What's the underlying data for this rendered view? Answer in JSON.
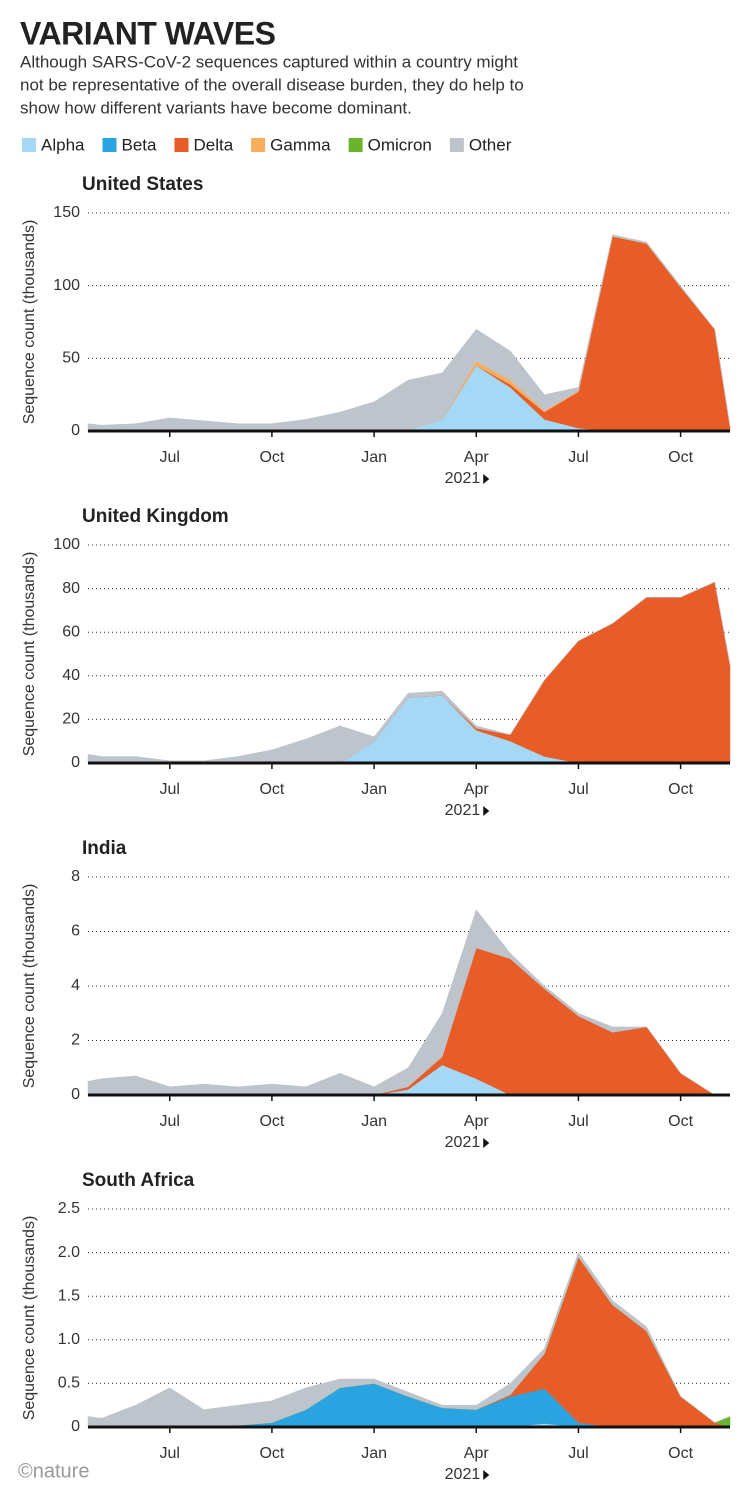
{
  "header": {
    "title": "VARIANT WAVES",
    "subtitle": [
      "Although SARS-CoV-2 sequences captured within a country might",
      "not be representative of the overall disease burden, they do help to",
      "show how different variants have become dominant."
    ],
    "credit": "©nature"
  },
  "legend": [
    {
      "name": "Alpha",
      "color": "#a4d8f5"
    },
    {
      "name": "Beta",
      "color": "#2aa4e0"
    },
    {
      "name": "Delta",
      "color": "#e85c27"
    },
    {
      "name": "Gamma",
      "color": "#f7ae5e"
    },
    {
      "name": "Omicron",
      "color": "#6ab42d"
    },
    {
      "name": "Other",
      "color": "#bec4cc"
    }
  ],
  "chart_data": [
    {
      "type": "area",
      "title": "United States",
      "y_label": "Sequence count (thousands)",
      "x": [
        3.6,
        4,
        5,
        6,
        7,
        8,
        9,
        10,
        11,
        12,
        13,
        14,
        15,
        16,
        17,
        18,
        19,
        20,
        21,
        22,
        22.45
      ],
      "xlim": [
        3.6,
        22.45
      ],
      "xticks": [
        {
          "value": 6,
          "label": "Jul"
        },
        {
          "value": 9,
          "label": "Oct"
        },
        {
          "value": 12,
          "label": "Jan"
        },
        {
          "value": 15,
          "label": "Apr"
        },
        {
          "value": 18,
          "label": "Jul"
        },
        {
          "value": 21,
          "label": "Oct"
        }
      ],
      "year_label": {
        "value": 15,
        "label": "2021"
      },
      "ylim": [
        0,
        150
      ],
      "yticks": [
        0,
        50,
        100,
        150
      ],
      "grid": true,
      "series": [
        {
          "name": "Alpha",
          "values": [
            0,
            0,
            0,
            0,
            0,
            0,
            0,
            0,
            0,
            0,
            1,
            8,
            45,
            30,
            8,
            2,
            0,
            0,
            0,
            0,
            0
          ]
        },
        {
          "name": "Delta",
          "values": [
            0,
            0,
            0,
            0,
            0,
            0,
            0,
            0,
            0,
            0,
            0,
            0,
            0,
            2,
            5,
            25,
            134,
            129,
            99,
            70,
            3
          ]
        },
        {
          "name": "Gamma",
          "values": [
            0,
            0,
            0,
            0,
            0,
            0,
            0,
            0,
            0,
            0,
            0,
            0,
            3,
            3,
            1,
            0.5,
            0,
            0,
            0,
            0,
            0
          ]
        },
        {
          "name": "Other",
          "values": [
            5,
            4,
            5,
            9,
            7,
            5,
            5,
            8,
            13,
            20,
            34,
            32,
            22,
            20,
            11,
            2.5,
            1,
            1,
            1,
            0,
            0
          ]
        }
      ]
    },
    {
      "type": "area",
      "title": "United Kingdom",
      "y_label": "Sequence count (thousands)",
      "x": [
        3.6,
        4,
        5,
        6,
        7,
        8,
        9,
        10,
        11,
        12,
        13,
        14,
        15,
        16,
        17,
        18,
        19,
        20,
        21,
        22,
        22.45
      ],
      "xlim": [
        3.6,
        22.45
      ],
      "xticks": [
        {
          "value": 6,
          "label": "Jul"
        },
        {
          "value": 9,
          "label": "Oct"
        },
        {
          "value": 12,
          "label": "Jan"
        },
        {
          "value": 15,
          "label": "Apr"
        },
        {
          "value": 18,
          "label": "Jul"
        },
        {
          "value": 21,
          "label": "Oct"
        }
      ],
      "year_label": {
        "value": 15,
        "label": "2021"
      },
      "ylim": [
        0,
        100
      ],
      "yticks": [
        0,
        20,
        40,
        60,
        80,
        100
      ],
      "grid": true,
      "series": [
        {
          "name": "Alpha",
          "values": [
            0,
            0,
            0,
            0,
            0,
            0,
            0,
            0,
            0,
            10,
            30,
            31,
            15,
            10,
            3,
            0,
            0,
            0,
            0,
            0,
            0
          ]
        },
        {
          "name": "Delta",
          "values": [
            0,
            0,
            0,
            0,
            0,
            0,
            0,
            0,
            0,
            0,
            0,
            0,
            1,
            3,
            35,
            56,
            64,
            76,
            76,
            83,
            45
          ]
        },
        {
          "name": "Other",
          "values": [
            4,
            3,
            3,
            1,
            1,
            3,
            6,
            11,
            17,
            2,
            2,
            2,
            1,
            0,
            0,
            0,
            0,
            0,
            0,
            0,
            0
          ]
        }
      ]
    },
    {
      "type": "area",
      "title": "India",
      "y_label": "Sequence count (thousands)",
      "x": [
        3.6,
        4,
        5,
        6,
        7,
        8,
        9,
        10,
        11,
        12,
        13,
        14,
        15,
        16,
        17,
        18,
        19,
        20,
        21,
        22,
        22.45
      ],
      "xlim": [
        3.6,
        22.45
      ],
      "xticks": [
        {
          "value": 6,
          "label": "Jul"
        },
        {
          "value": 9,
          "label": "Oct"
        },
        {
          "value": 12,
          "label": "Jan"
        },
        {
          "value": 15,
          "label": "Apr"
        },
        {
          "value": 18,
          "label": "Jul"
        },
        {
          "value": 21,
          "label": "Oct"
        }
      ],
      "year_label": {
        "value": 15,
        "label": "2021"
      },
      "ylim": [
        0,
        8
      ],
      "yticks": [
        0,
        2,
        4,
        6,
        8
      ],
      "grid": true,
      "series": [
        {
          "name": "Alpha",
          "values": [
            0,
            0,
            0,
            0,
            0,
            0,
            0,
            0,
            0,
            0,
            0.2,
            1.1,
            0.6,
            0,
            0,
            0,
            0,
            0,
            0,
            0,
            0
          ]
        },
        {
          "name": "Delta",
          "values": [
            0,
            0,
            0,
            0,
            0,
            0,
            0,
            0,
            0,
            0,
            0.1,
            0.3,
            4.8,
            5.0,
            3.9,
            2.9,
            2.3,
            2.5,
            0.8,
            0,
            0
          ]
        },
        {
          "name": "Other",
          "values": [
            0.5,
            0.6,
            0.7,
            0.3,
            0.4,
            0.3,
            0.4,
            0.3,
            0.8,
            0.3,
            0.7,
            1.6,
            1.4,
            0.2,
            0.1,
            0.1,
            0.2,
            0,
            0,
            0,
            0
          ]
        }
      ]
    },
    {
      "type": "area",
      "title": "South Africa",
      "y_label": "Sequence count (thousands)",
      "x": [
        3.6,
        4,
        5,
        6,
        7,
        8,
        9,
        10,
        11,
        12,
        13,
        14,
        15,
        16,
        17,
        18,
        19,
        20,
        21,
        22,
        22.45
      ],
      "xlim": [
        3.6,
        22.45
      ],
      "xticks": [
        {
          "value": 6,
          "label": "Jul"
        },
        {
          "value": 9,
          "label": "Oct"
        },
        {
          "value": 12,
          "label": "Jan"
        },
        {
          "value": 15,
          "label": "Apr"
        },
        {
          "value": 18,
          "label": "Jul"
        },
        {
          "value": 21,
          "label": "Oct"
        }
      ],
      "year_label": {
        "value": 15,
        "label": "2021"
      },
      "ylim": [
        0,
        2.5
      ],
      "yticks": [
        0,
        0.5,
        {
          "value": 1,
          "label": "1.0"
        },
        1.5,
        {
          "value": 2,
          "label": "2.0"
        },
        2.5
      ],
      "grid": true,
      "series": [
        {
          "name": "Alpha",
          "values": [
            0,
            0,
            0,
            0,
            0,
            0,
            0,
            0,
            0,
            0,
            0,
            0,
            0,
            0,
            0.04,
            0,
            0,
            0,
            0,
            0,
            0
          ]
        },
        {
          "name": "Beta",
          "values": [
            0,
            0,
            0,
            0,
            0,
            0.02,
            0.05,
            0.2,
            0.45,
            0.5,
            0.35,
            0.22,
            0.2,
            0.35,
            0.4,
            0.05,
            0,
            0,
            0,
            0,
            0
          ]
        },
        {
          "name": "Delta",
          "values": [
            0,
            0,
            0,
            0,
            0,
            0,
            0,
            0,
            0,
            0,
            0,
            0,
            0,
            0.02,
            0.4,
            1.9,
            1.4,
            1.1,
            0.35,
            0.05,
            0
          ]
        },
        {
          "name": "Omicron",
          "values": [
            0,
            0,
            0,
            0,
            0,
            0,
            0,
            0,
            0,
            0,
            0,
            0,
            0,
            0,
            0,
            0,
            0,
            0,
            0,
            0,
            0.12
          ]
        },
        {
          "name": "Other",
          "values": [
            0.12,
            0.1,
            0.25,
            0.45,
            0.2,
            0.23,
            0.25,
            0.25,
            0.1,
            0.05,
            0.05,
            0.03,
            0.05,
            0.13,
            0.06,
            0.05,
            0.05,
            0.05,
            0,
            0,
            0
          ]
        }
      ]
    }
  ]
}
